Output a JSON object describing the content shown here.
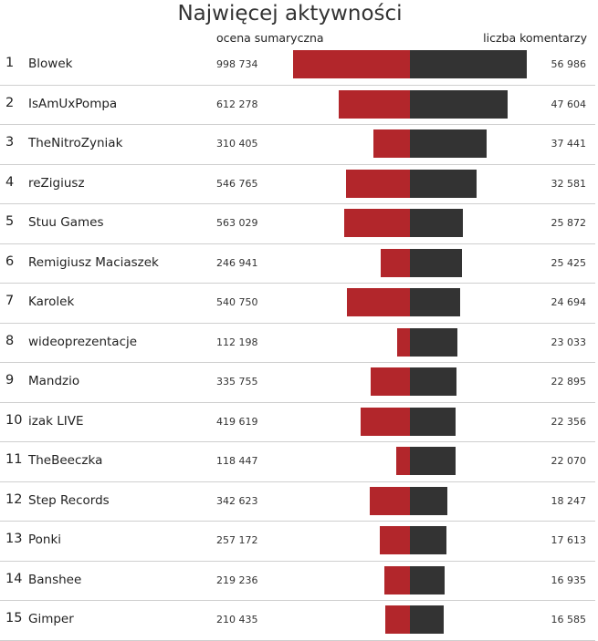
{
  "chart_data": {
    "type": "bar",
    "title": "Najwięcej aktywności",
    "left_label": "ocena sumaryczna",
    "right_label": "liczba komentarzy",
    "colors": {
      "score": "#b2262b",
      "comments": "#333333"
    },
    "rows": [
      {
        "rank": "1",
        "name": "Blowek",
        "score": 998734,
        "score_label": "998 734",
        "comments": 56986,
        "comments_label": "56 986"
      },
      {
        "rank": "2",
        "name": "IsAmUxPompa",
        "score": 612278,
        "score_label": "612 278",
        "comments": 47604,
        "comments_label": "47 604"
      },
      {
        "rank": "3",
        "name": "TheNitroZyniak",
        "score": 310405,
        "score_label": "310 405",
        "comments": 37441,
        "comments_label": "37 441"
      },
      {
        "rank": "4",
        "name": "reZigiusz",
        "score": 546765,
        "score_label": "546 765",
        "comments": 32581,
        "comments_label": "32 581"
      },
      {
        "rank": "5",
        "name": "Stuu Games",
        "score": 563029,
        "score_label": "563 029",
        "comments": 25872,
        "comments_label": "25 872"
      },
      {
        "rank": "6",
        "name": "Remigiusz Maciaszek",
        "score": 246941,
        "score_label": "246 941",
        "comments": 25425,
        "comments_label": "25 425"
      },
      {
        "rank": "7",
        "name": "Karolek",
        "score": 540750,
        "score_label": "540 750",
        "comments": 24694,
        "comments_label": "24 694"
      },
      {
        "rank": "8",
        "name": "wideoprezentacje",
        "score": 112198,
        "score_label": "112 198",
        "comments": 23033,
        "comments_label": "23 033"
      },
      {
        "rank": "9",
        "name": "Mandzio",
        "score": 335755,
        "score_label": "335 755",
        "comments": 22895,
        "comments_label": "22 895"
      },
      {
        "rank": "10",
        "name": "izak LIVE",
        "score": 419619,
        "score_label": "419 619",
        "comments": 22356,
        "comments_label": "22 356"
      },
      {
        "rank": "11",
        "name": "TheBeeczka",
        "score": 118447,
        "score_label": "118 447",
        "comments": 22070,
        "comments_label": "22 070"
      },
      {
        "rank": "12",
        "name": "Step Records",
        "score": 342623,
        "score_label": "342 623",
        "comments": 18247,
        "comments_label": "18 247"
      },
      {
        "rank": "13",
        "name": "Ponki",
        "score": 257172,
        "score_label": "257 172",
        "comments": 17613,
        "comments_label": "17 613"
      },
      {
        "rank": "14",
        "name": "Banshee",
        "score": 219236,
        "score_label": "219 236",
        "comments": 16935,
        "comments_label": "16 935"
      },
      {
        "rank": "15",
        "name": "Gimper",
        "score": 210435,
        "score_label": "210 435",
        "comments": 16585,
        "comments_label": "16 585"
      }
    ]
  }
}
